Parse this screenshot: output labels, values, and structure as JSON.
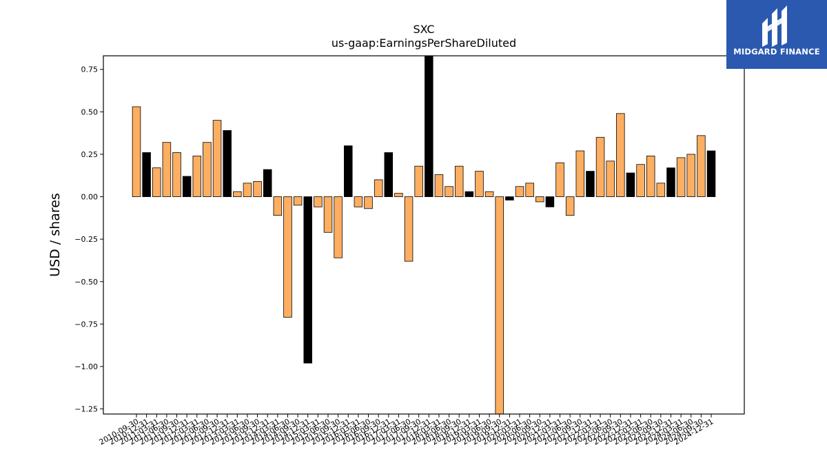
{
  "brand": {
    "name": "MIDGARD FINANCE",
    "background": "#2b59b0",
    "mark_icon": "midgard-logo-icon"
  },
  "chart_data": {
    "type": "bar",
    "title": "SXC",
    "subtitle": "us-gaap:EarningsPerShareDiluted",
    "xlabel": "",
    "ylabel": "USD / shares",
    "ylim": [
      -1.28,
      0.83
    ],
    "yticks": [
      -1.25,
      -1.0,
      -0.75,
      -0.5,
      -0.25,
      0.0,
      0.25,
      0.5,
      0.75
    ],
    "grid": false,
    "colors": {
      "quarter": "#fdae61",
      "annual": "#000000"
    },
    "categories": [
      "2010-09-30",
      "2010-12-31",
      "2011-03-31",
      "2011-06-30",
      "2011-09-30",
      "2011-12-31",
      "2012-03-31",
      "2012-06-30",
      "2012-09-30",
      "2012-12-31",
      "2013-03-31",
      "2013-06-30",
      "2013-09-30",
      "2013-12-31",
      "2014-03-31",
      "2014-06-30",
      "2014-09-30",
      "2014-12-31",
      "2015-03-31",
      "2015-06-30",
      "2015-09-30",
      "2015-12-31",
      "2016-03-31",
      "2016-06-30",
      "2016-09-30",
      "2016-12-31",
      "2017-03-31",
      "2017-06-30",
      "2017-09-30",
      "2017-12-31",
      "2018-03-31",
      "2018-06-30",
      "2018-09-30",
      "2018-12-31",
      "2019-03-31",
      "2019-06-30",
      "2019-09-30",
      "2019-12-31",
      "2020-03-31",
      "2020-06-30",
      "2020-09-30",
      "2020-12-31",
      "2021-03-31",
      "2021-06-30",
      "2021-09-30",
      "2021-12-31",
      "2022-03-31",
      "2022-06-30",
      "2022-09-30",
      "2022-12-31",
      "2023-03-31",
      "2023-06-30",
      "2023-09-30",
      "2023-12-31",
      "2024-03-31",
      "2024-06-30",
      "2024-09-30",
      "2024-12-31"
    ],
    "values": [
      0.53,
      0.26,
      0.17,
      0.32,
      0.26,
      0.12,
      0.24,
      0.32,
      0.45,
      0.39,
      0.03,
      0.08,
      0.09,
      0.16,
      -0.11,
      -0.71,
      -0.05,
      -0.98,
      -0.06,
      -0.21,
      -0.36,
      0.3,
      -0.06,
      -0.07,
      0.1,
      0.26,
      0.02,
      -0.38,
      0.18,
      0.85,
      0.13,
      0.06,
      0.18,
      0.03,
      0.15,
      0.03,
      -1.3,
      -0.02,
      0.06,
      0.08,
      -0.03,
      -0.06,
      0.2,
      -0.11,
      0.27,
      0.15,
      0.35,
      0.21,
      0.49,
      0.14,
      0.19,
      0.24,
      0.08,
      0.17,
      0.23,
      0.25,
      0.36,
      0.27
    ],
    "is_annual": [
      false,
      true,
      false,
      false,
      false,
      true,
      false,
      false,
      false,
      true,
      false,
      false,
      false,
      true,
      false,
      false,
      false,
      true,
      false,
      false,
      false,
      true,
      false,
      false,
      false,
      true,
      false,
      false,
      false,
      true,
      false,
      false,
      false,
      true,
      false,
      false,
      false,
      true,
      false,
      false,
      false,
      true,
      false,
      false,
      false,
      true,
      false,
      false,
      false,
      true,
      false,
      false,
      false,
      true,
      false,
      false,
      false,
      true
    ]
  }
}
